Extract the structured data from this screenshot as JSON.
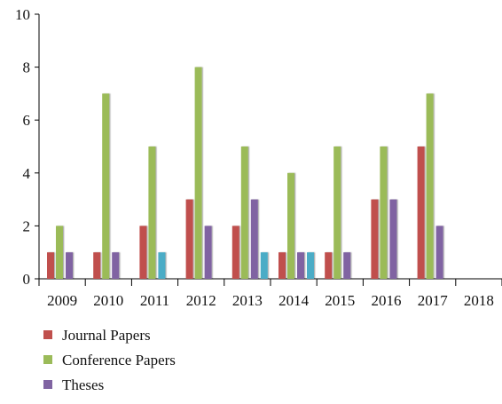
{
  "chart_data": {
    "type": "bar",
    "title": "",
    "xlabel": "",
    "ylabel": "",
    "ylim": [
      0,
      10
    ],
    "yticks": [
      0,
      2,
      4,
      6,
      8,
      10
    ],
    "categories": [
      "2009",
      "2010",
      "2011",
      "2012",
      "2013",
      "2014",
      "2015",
      "2016",
      "2017",
      "2018"
    ],
    "series": [
      {
        "name": "Journal Papers",
        "color": "#c0504d",
        "values": [
          1,
          1,
          2,
          3,
          2,
          1,
          1,
          3,
          5,
          0
        ],
        "in_legend": true
      },
      {
        "name": "Conference Papers",
        "color": "#9bbb59",
        "values": [
          2,
          7,
          5,
          8,
          5,
          4,
          5,
          5,
          7,
          0
        ],
        "in_legend": true
      },
      {
        "name": "Theses",
        "color": "#8064a2",
        "values": [
          1,
          1,
          0,
          2,
          3,
          1,
          1,
          3,
          2,
          0
        ],
        "in_legend": true
      },
      {
        "name": "",
        "color": "#4bacc6",
        "values": [
          0,
          0,
          1,
          0,
          1,
          1,
          0,
          0,
          0,
          0
        ],
        "in_legend": false
      }
    ],
    "grid": false,
    "legend_position": "bottom-left"
  }
}
